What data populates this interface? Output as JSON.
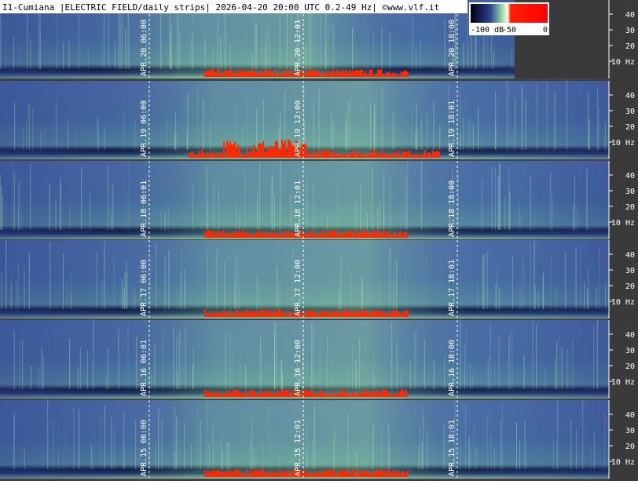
{
  "header": {
    "title": "I1-Cumiana |ELECTRIC FIELD/daily strips| 2026-04-20 20:00 UTC 0.2-49 Hz| ©www.vlf.it"
  },
  "colorbar": {
    "labels": [
      "-100 dB",
      "-50",
      "0"
    ]
  },
  "axis_labels": [
    "10 Hz",
    "20",
    "30",
    "40"
  ],
  "strips": [
    {
      "date": "APR.20",
      "times": [
        "06:00",
        "12:01",
        "18:00"
      ]
    },
    {
      "date": "APR.19",
      "times": [
        "06:00",
        "12:00",
        "18:01"
      ]
    },
    {
      "date": "APR.18",
      "times": [
        "06:01",
        "12:01",
        "18:00"
      ]
    },
    {
      "date": "APR.17",
      "times": [
        "06:00",
        "12:00",
        "18:01"
      ]
    },
    {
      "date": "APR.16",
      "times": [
        "06:01",
        "12:00",
        "18:00"
      ]
    },
    {
      "date": "APR.15",
      "times": [
        "06:00",
        "12:01",
        "18:01"
      ]
    }
  ]
}
